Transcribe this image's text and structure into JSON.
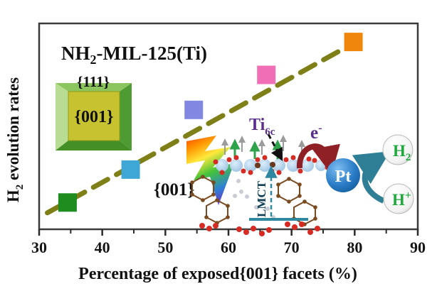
{
  "title": {
    "pre": "NH",
    "sub": "2",
    "post": "-MIL-125(Ti)"
  },
  "axes": {
    "x_label": "Percentage of exposed{001} facets (%)",
    "y_label": {
      "pre": "H",
      "sub": "2",
      "post": " evolution rates"
    }
  },
  "chart_data": {
    "type": "scatter",
    "title": "NH2-MIL-125(Ti)",
    "xlabel": "Percentage of exposed {001} facets (%)",
    "ylabel": "H2 evolution rates (no numeric ticks shown, arbitrary units)",
    "x_range": [
      30,
      90
    ],
    "x_ticks": [
      30,
      40,
      50,
      60,
      70,
      80,
      90
    ],
    "x_minor_step": 5,
    "grid": false,
    "legend": "none",
    "marker_size_px": 26,
    "points": [
      {
        "x": 34.5,
        "y_rel": 0.13,
        "color": "#1f8c1f",
        "marker": "square"
      },
      {
        "x": 44.5,
        "y_rel": 0.29,
        "color": "#3fa7d6",
        "marker": "square"
      },
      {
        "x": 54.5,
        "y_rel": 0.58,
        "color": "#8287e2",
        "marker": "square"
      },
      {
        "x": 66.0,
        "y_rel": 0.75,
        "color": "#f06eb6",
        "marker": "square"
      },
      {
        "x": 79.8,
        "y_rel": 0.91,
        "color": "#f0860b",
        "marker": "square"
      }
    ],
    "trendline": {
      "style": "dashed",
      "color": "#7f7f17",
      "x1": 31.3,
      "y1_rel": 0.08,
      "x2": 78.4,
      "y2_rel": 0.88
    }
  },
  "inset_crystal": {
    "top_facet": "{111}",
    "front_facet": "{001}"
  },
  "annotations": {
    "facet_label": "{001}",
    "ti_site": {
      "pre": "Ti",
      "sub": "6c"
    },
    "electron": {
      "pre": "e",
      "sup": "-"
    },
    "lmct": "LMCT",
    "pt": "Pt",
    "h2": {
      "pre": "H",
      "sub": "2"
    },
    "hplus": {
      "pre": "H",
      "sup": "+"
    }
  },
  "colors": {
    "trend": "#7f7f17",
    "frame": "#3a3a3a",
    "purple_text": "#5b2d8e",
    "teal": "#2e7f96",
    "dark_red": "#8f2025",
    "green_text": "#1fa83c",
    "pt_blue": "#1565ad"
  }
}
